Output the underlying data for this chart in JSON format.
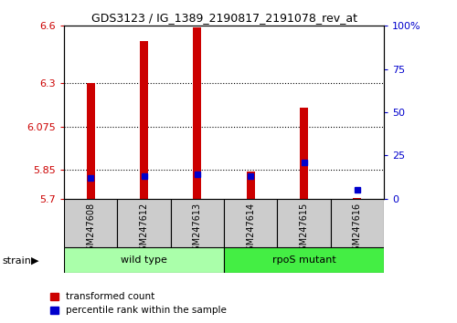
{
  "title": "GDS3123 / IG_1389_2190817_2191078_rev_at",
  "samples": [
    "GSM247608",
    "GSM247612",
    "GSM247613",
    "GSM247614",
    "GSM247615",
    "GSM247616"
  ],
  "red_values": [
    6.3,
    6.52,
    6.59,
    5.84,
    6.175,
    5.705
  ],
  "blue_values_pct": [
    12,
    13,
    14,
    13,
    21,
    5
  ],
  "ylim_left": [
    5.7,
    6.6
  ],
  "ylim_right": [
    0,
    100
  ],
  "yticks_left": [
    5.7,
    5.85,
    6.075,
    6.3,
    6.6
  ],
  "yticks_right": [
    0,
    25,
    50,
    75,
    100
  ],
  "ytick_labels_left": [
    "5.7",
    "5.85",
    "6.075",
    "6.3",
    "6.6"
  ],
  "ytick_labels_right": [
    "0",
    "25",
    "50",
    "75",
    "100%"
  ],
  "groups": [
    {
      "label": "wild type",
      "indices": [
        0,
        1,
        2
      ],
      "color": "#AAFFAA"
    },
    {
      "label": "rpoS mutant",
      "indices": [
        3,
        4,
        5
      ],
      "color": "#44EE44"
    }
  ],
  "bar_width": 0.15,
  "red_color": "#CC0000",
  "blue_color": "#0000CC",
  "sample_box_color": "#CCCCCC",
  "left_axis_color": "#CC0000",
  "right_axis_color": "#0000CC"
}
